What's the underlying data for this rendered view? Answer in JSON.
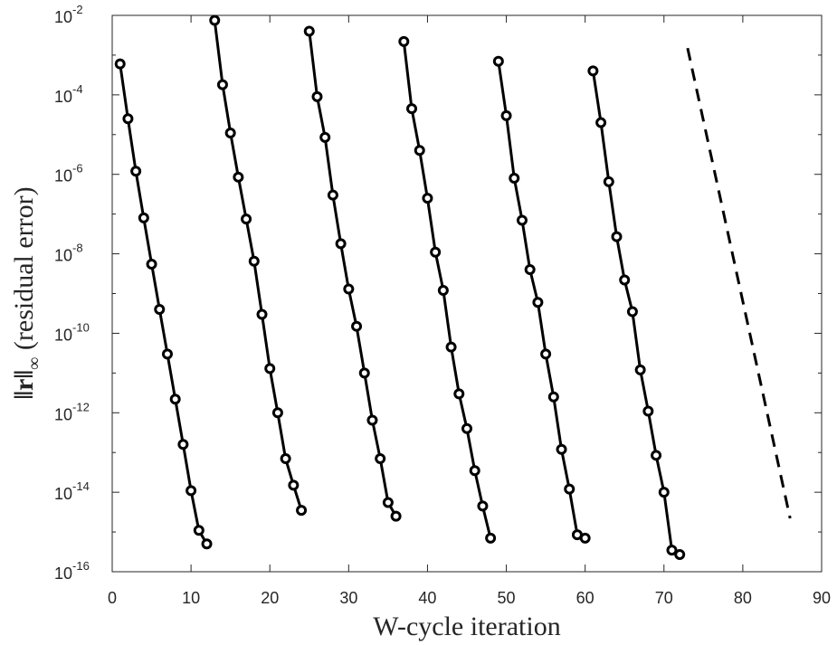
{
  "chart_data": {
    "type": "line",
    "xlabel": "W-cycle iteration",
    "ylabel": "‖r‖∞ (residual error)",
    "ylabel_parts": {
      "norm": "‖r‖",
      "sub": "∞",
      "rest": " (residual error)"
    },
    "xlim": [
      0,
      90
    ],
    "ylim_exponents": [
      -16,
      -2
    ],
    "y_scale": "log",
    "grid": false,
    "legend": "none",
    "x_ticks": [
      0,
      10,
      20,
      30,
      40,
      50,
      60,
      70,
      80,
      90
    ],
    "y_tick_labels": [
      {
        "base": "10",
        "exp": "-2",
        "value": 0.01
      },
      {
        "base": "10",
        "exp": "-4",
        "value": 0.0001
      },
      {
        "base": "10",
        "exp": "-6",
        "value": 1e-06
      },
      {
        "base": "10",
        "exp": "-8",
        "value": 1e-08
      },
      {
        "base": "10",
        "exp": "-10",
        "value": 1e-10
      },
      {
        "base": "10",
        "exp": "-12",
        "value": 1e-12
      },
      {
        "base": "10",
        "exp": "-14",
        "value": 1e-14
      },
      {
        "base": "10",
        "exp": "-16",
        "value": 1e-16
      }
    ],
    "series": [
      {
        "style": "solid-circles",
        "x": [
          1,
          2,
          3,
          4,
          5,
          6,
          7,
          8,
          9,
          10,
          11,
          12
        ],
        "y": [
          0.0006,
          2.5e-05,
          1.2e-06,
          8e-08,
          5.5e-09,
          4e-10,
          3e-11,
          2.2e-12,
          1.6e-13,
          1.1e-14,
          1.1e-15,
          5e-16
        ]
      },
      {
        "style": "solid-circles",
        "x": [
          13,
          14,
          15,
          16,
          17,
          18,
          19,
          20,
          21,
          22,
          23,
          24
        ],
        "y": [
          0.0075,
          0.00018,
          1.1e-05,
          8.5e-07,
          7.5e-08,
          6.5e-09,
          3e-10,
          1.3e-11,
          1e-12,
          7e-14,
          1.5e-14,
          3.5e-15
        ]
      },
      {
        "style": "solid-circles",
        "x": [
          25,
          26,
          27,
          28,
          29,
          30,
          31,
          32,
          33,
          34,
          35,
          36
        ],
        "y": [
          0.004,
          9e-05,
          8.5e-06,
          3e-07,
          1.8e-08,
          1.3e-09,
          1.5e-10,
          1e-11,
          6.5e-13,
          7e-14,
          5.5e-15,
          2.5e-15
        ]
      },
      {
        "style": "solid-circles",
        "x": [
          37,
          38,
          39,
          40,
          41,
          42,
          43,
          44,
          45,
          46,
          47,
          48
        ],
        "y": [
          0.0022,
          4.5e-05,
          4e-06,
          2.5e-07,
          1.1e-08,
          1.2e-09,
          4.5e-11,
          3e-12,
          4e-13,
          3.5e-14,
          4.5e-15,
          7e-16
        ]
      },
      {
        "style": "solid-circles",
        "x": [
          49,
          50,
          51,
          52,
          53,
          54,
          55,
          56,
          57,
          58,
          59,
          60
        ],
        "y": [
          0.0007,
          3e-05,
          8e-07,
          7e-08,
          4e-09,
          6e-10,
          3e-11,
          2.5e-12,
          1.2e-13,
          1.2e-14,
          8.5e-16,
          7e-16
        ]
      },
      {
        "style": "solid-circles",
        "x": [
          61,
          62,
          63,
          64,
          65,
          66,
          67,
          68,
          69,
          70,
          71,
          72
        ],
        "y": [
          0.0004,
          2e-05,
          6.5e-07,
          2.7e-08,
          2.2e-09,
          3.5e-10,
          1.2e-11,
          1.1e-12,
          8.5e-14,
          1e-14,
          3.5e-16,
          2.7e-16
        ]
      },
      {
        "style": "dashed",
        "x": [
          73,
          86
        ],
        "y": [
          0.0015,
          2.2e-15
        ]
      }
    ]
  }
}
